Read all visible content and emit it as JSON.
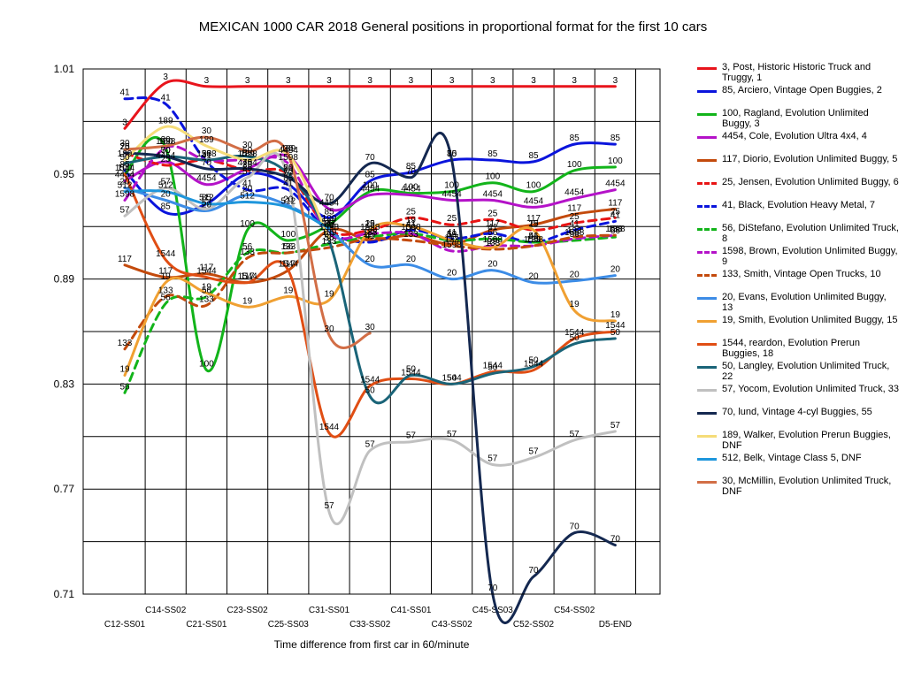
{
  "title": "MEXICAN 1000 CAR 2018  General positions in proportional format for the first 10 cars",
  "chart_data": {
    "type": "line",
    "title": "MEXICAN 1000 CAR 2018  General positions in proportional format for the first 10 cars",
    "xlabel": "Time difference from first car in 60/minute",
    "ylabel": "",
    "ylim": [
      0.71,
      1.01
    ],
    "yticks": [
      "1.01",
      "0.95",
      "0.89",
      "0.83",
      "0.77",
      "0.71"
    ],
    "categories": [
      "C12-SS01",
      "C14-SS02",
      "C21-SS01",
      "C23-SS02",
      "C25-SS03",
      "C31-SS01",
      "C33-SS02",
      "C41-SS01",
      "C43-SS02",
      "C45-SS03",
      "C52-SS02",
      "C54-SS02",
      "D5-END"
    ],
    "grid": true,
    "legend_position": "right",
    "series": [
      {
        "name": "3, Post, Historic Historic Truck and Truggy, 1",
        "label": "3",
        "color": "#e8141c",
        "dashed": false,
        "values": [
          0.976,
          1.002,
          1.0,
          1.0,
          1.0,
          1.0,
          1.0,
          1.0,
          1.0,
          1.0,
          1.0,
          1.0,
          1.0
        ]
      },
      {
        "name": "85, Arciero, Vintage Open Buggies, 2",
        "label": "85",
        "color": "#0a14dc",
        "dashed": false,
        "values": [
          0.952,
          0.928,
          0.933,
          0.95,
          0.944,
          0.925,
          0.946,
          0.951,
          0.958,
          0.958,
          0.957,
          0.967,
          0.967
        ]
      },
      {
        "name": "100, Ragland, Evolution Unlimited Buggy, 3",
        "label": "100",
        "color": "#12b41a",
        "dashed": false,
        "values": [
          0.95,
          0.965,
          0.838,
          0.918,
          0.912,
          0.921,
          0.94,
          0.939,
          0.94,
          0.945,
          0.94,
          0.952,
          0.954
        ]
      },
      {
        "name": "4454, Cole, Evolution Ultra 4x4, 4",
        "label": "4454",
        "color": "#b412c8",
        "dashed": false,
        "values": [
          0.946,
          0.957,
          0.944,
          0.953,
          0.96,
          0.93,
          0.938,
          0.938,
          0.935,
          0.935,
          0.931,
          0.936,
          0.941
        ]
      },
      {
        "name": "117, Diorio, Evolution Unlimited Buggy, 5",
        "label": "117",
        "color": "#c34a0c",
        "dashed": false,
        "values": [
          0.898,
          0.891,
          0.893,
          0.888,
          0.895,
          0.918,
          0.912,
          0.915,
          0.91,
          0.918,
          0.921,
          0.927,
          0.93
        ]
      },
      {
        "name": "25, Jensen, Evolution Unlimited Buggy, 6",
        "label": "25",
        "color": "#e81414",
        "dashed": true,
        "values": [
          0.962,
          0.955,
          0.958,
          0.952,
          0.95,
          0.918,
          0.918,
          0.925,
          0.921,
          0.924,
          0.918,
          0.922,
          0.925
        ]
      },
      {
        "name": "41, Black, Evolution Heavy Metal, 7",
        "label": "41",
        "color": "#0a14dc",
        "dashed": true,
        "values": [
          0.993,
          0.99,
          0.957,
          0.941,
          0.941,
          0.917,
          0.911,
          0.918,
          0.913,
          0.916,
          0.911,
          0.918,
          0.923
        ]
      },
      {
        "name": "56, DiStefano, Evolution Unlimited Truck, 8",
        "label": "56",
        "color": "#12b41a",
        "dashed": true,
        "values": [
          0.825,
          0.876,
          0.88,
          0.905,
          0.905,
          0.91,
          0.914,
          0.916,
          0.912,
          0.913,
          0.911,
          0.912,
          0.914
        ]
      },
      {
        "name": "1598, Brown, Evolution Unlimited Buggy, 9",
        "label": "1598",
        "color": "#b412c8",
        "dashed": true,
        "values": [
          0.935,
          0.965,
          0.958,
          0.958,
          0.956,
          0.916,
          0.916,
          0.916,
          0.906,
          0.909,
          0.909,
          0.913,
          0.915
        ]
      },
      {
        "name": "133, Smith, Vintage Open Trucks, 10",
        "label": "133",
        "color": "#c34a0c",
        "dashed": true,
        "values": [
          0.85,
          0.88,
          0.875,
          0.902,
          0.905,
          0.908,
          0.913,
          0.912,
          0.909,
          0.907,
          0.909,
          0.914,
          0.915
        ]
      },
      {
        "name": "20, Evans, Evolution Unlimited Buggy, 13",
        "label": "20",
        "color": "#3c8ce6",
        "dashed": false,
        "values": [
          0.942,
          0.935,
          0.929,
          0.938,
          0.932,
          0.918,
          0.898,
          0.898,
          0.89,
          0.895,
          0.888,
          0.889,
          0.892
        ]
      },
      {
        "name": "19, Smith, Evolution Unlimited Buggy, 15",
        "label": "19",
        "color": "#f0a032",
        "dashed": false,
        "values": [
          0.835,
          0.888,
          0.882,
          0.874,
          0.88,
          0.878,
          0.918,
          0.92,
          0.912,
          0.908,
          0.918,
          0.872,
          0.866
        ]
      },
      {
        "name": "1544, reardon, Evolution Prerun Buggies, 18",
        "label": "1544",
        "color": "#e04e14",
        "dashed": false,
        "values": [
          0.95,
          0.901,
          0.891,
          0.888,
          0.895,
          0.802,
          0.829,
          0.833,
          0.83,
          0.837,
          0.838,
          0.856,
          0.86
        ]
      },
      {
        "name": "50, Langley, Evolution Unlimited Truck, 22",
        "label": "50",
        "color": "#1a6478",
        "dashed": false,
        "values": [
          0.956,
          0.96,
          0.958,
          0.96,
          0.95,
          0.912,
          0.823,
          0.835,
          0.83,
          0.836,
          0.84,
          0.853,
          0.856
        ]
      },
      {
        "name": "57, Yocom, Evolution Unlimited Truck, 33",
        "label": "57",
        "color": "#c0c0c0",
        "dashed": false,
        "values": [
          0.926,
          0.942,
          0.93,
          0.948,
          0.947,
          0.757,
          0.792,
          0.797,
          0.798,
          0.784,
          0.788,
          0.798,
          0.803
        ]
      },
      {
        "name": "70, lund, Vintage 4-cyl Buggies, 55",
        "label": "70",
        "color": "#142850",
        "dashed": false,
        "values": [
          0.962,
          0.96,
          0.953,
          0.953,
          0.948,
          0.933,
          0.956,
          0.948,
          0.958,
          0.71,
          0.72,
          0.745,
          0.738
        ]
      },
      {
        "name": "189, Walker, Evolution Prerun Buggies, DNF",
        "label": "189",
        "color": "#f5dc78",
        "dashed": false,
        "values": [
          0.958,
          0.977,
          0.966,
          0.958,
          0.961,
          0.913,
          null,
          null,
          null,
          null,
          null,
          null,
          null
        ]
      },
      {
        "name": "512, Belk, Vintage Class 5, DNF",
        "label": "512",
        "color": "#1e96dc",
        "dashed": false,
        "values": [
          0.94,
          0.94,
          0.933,
          0.934,
          0.931,
          0.919,
          null,
          null,
          null,
          null,
          null,
          null,
          null
        ]
      },
      {
        "name": "30, McMillin, Evolution Unlimited Truck, DNF",
        "label": "30",
        "color": "#d26e46",
        "dashed": false,
        "values": [
          0.964,
          0.966,
          0.971,
          0.963,
          0.961,
          0.858,
          0.859,
          null,
          null,
          null,
          null,
          null,
          null
        ]
      }
    ]
  }
}
